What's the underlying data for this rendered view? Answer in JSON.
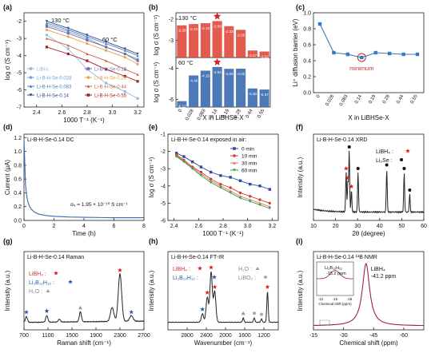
{
  "watermark": "",
  "chart_data": [
    {
      "id": "a",
      "panel_label": "(a)",
      "type": "line",
      "ylabel": "log σ (S cm⁻¹)",
      "xlabel": "1000 T⁻¹ (K⁻¹)",
      "xlim": [
        2.3,
        3.25
      ],
      "ylim": [
        -7,
        -1.5
      ],
      "xticks": [
        "2.4",
        "2.6",
        "2.8",
        "3.0",
        "3.2"
      ],
      "yticks": [
        "-2",
        "-3",
        "-4",
        "-5",
        "-6",
        "-7"
      ],
      "annotations": [
        "130 °C",
        "60 °C"
      ],
      "legend_position": "bottom",
      "series": [
        {
          "name": "LiBH₄",
          "color": "#8fbfe0",
          "x": [
            2.48,
            2.65,
            2.8,
            2.95,
            3.1,
            3.2
          ],
          "y": [
            -2.8,
            -3.6,
            -4.8,
            -5.6,
            -6.1,
            -6.5
          ]
        },
        {
          "name": "Li-B-H-Se-0.028",
          "color": "#6fa0d0",
          "x": [
            2.48,
            2.65,
            2.8,
            2.95,
            3.1,
            3.2
          ],
          "y": [
            -2.2,
            -2.6,
            -3.0,
            -3.5,
            -3.9,
            -4.2
          ]
        },
        {
          "name": "Li-B-H-Se-0.083",
          "color": "#4a7fc0",
          "x": [
            2.48,
            2.65,
            2.8,
            2.95,
            3.1,
            3.2
          ],
          "y": [
            -2.1,
            -2.5,
            -2.9,
            -3.3,
            -3.7,
            -4.0
          ]
        },
        {
          "name": "Li-B-H-Se-0.14",
          "color": "#2c4a8c",
          "x": [
            2.48,
            2.65,
            2.8,
            2.95,
            3.1,
            3.2
          ],
          "y": [
            -2.0,
            -2.4,
            -2.8,
            -3.2,
            -3.6,
            -3.9
          ]
        },
        {
          "name": "Li-B-H-Se-0.19",
          "color": "#7a6aa8",
          "x": [
            2.48,
            2.65,
            2.8,
            2.95,
            3.1,
            3.2
          ],
          "y": [
            -2.3,
            -2.7,
            -3.1,
            -3.5,
            -3.9,
            -4.3
          ]
        },
        {
          "name": "Li-B-H-Se-0.28",
          "color": "#e8a050",
          "x": [
            2.48,
            2.65,
            2.8,
            2.95,
            3.1,
            3.2
          ],
          "y": [
            -2.5,
            -2.9,
            -3.3,
            -3.7,
            -4.1,
            -4.5
          ]
        },
        {
          "name": "Li-B-H-Se-0.44",
          "color": "#d06040",
          "x": [
            2.48,
            2.65,
            2.8,
            2.95,
            3.1,
            3.2
          ],
          "y": [
            -3.0,
            -3.4,
            -3.9,
            -4.3,
            -4.8,
            -5.1
          ]
        },
        {
          "name": "Li-B-H-Se-0.55",
          "color": "#a02020",
          "x": [
            2.48,
            2.65,
            2.8,
            2.95,
            3.1,
            3.2
          ],
          "y": [
            -3.5,
            -3.9,
            -4.3,
            -4.8,
            -5.2,
            -5.5
          ]
        }
      ]
    },
    {
      "id": "b",
      "panel_label": "(b)",
      "type": "bar",
      "ylabel_top": "log σ (S cm⁻¹)",
      "ylabel_bottom": "log σ (S cm⁻¹)",
      "xlabel": "X in LiBHSe-X",
      "categories": [
        "0",
        "0.028",
        "0.083",
        "0.14",
        "0.19",
        "0.28",
        "0.44",
        "0.55"
      ],
      "top": {
        "label": "130 °C",
        "values": [
          -2.29,
          -2.23,
          -2.19,
          -2.09,
          -2.33,
          -2.5,
          -3.47,
          -3.52
        ],
        "labels": [
          "-2.29",
          "-2.23",
          "-2.19",
          "-2.09",
          "-2.33",
          "-2.50",
          "-3.47",
          "-3.52"
        ],
        "yticks": [
          "-2",
          "-3"
        ],
        "color": "#e0483c"
      },
      "bottom": {
        "label": "60 °C",
        "values": [
          -6.12,
          -4.46,
          -4.15,
          -3.91,
          -4.03,
          -4.02,
          -5.3,
          -5.37
        ],
        "labels": [
          "-6.12",
          "-4.46",
          "-4.15",
          "-3.91",
          "-4.03",
          "-4.02",
          "-5.30",
          "-5.37"
        ],
        "yticks": [
          "-4",
          "-6"
        ],
        "color": "#3a6ab0"
      }
    },
    {
      "id": "c",
      "panel_label": "(c)",
      "type": "line",
      "ylabel": "Li⁺ diffusion barrier (eV)",
      "xlabel": "X in LiBHSe-X",
      "categories": [
        "0",
        "0.028",
        "0.083",
        "0.14",
        "0.19",
        "0.28",
        "0.44",
        "0.55"
      ],
      "values": [
        0.86,
        0.5,
        0.48,
        0.44,
        0.5,
        0.49,
        0.48,
        0.48
      ],
      "ylim": [
        0.0,
        1.0
      ],
      "yticks": [
        "0.0",
        "0.2",
        "0.4",
        "0.6",
        "0.8",
        "1.0"
      ],
      "annotation": "minimum"
    },
    {
      "id": "d",
      "panel_label": "(d)",
      "type": "line",
      "title": "Li-B-H-Se-0.14  DC",
      "ylabel": "Current (μA)",
      "xlabel": "Time (h)",
      "xlim": [
        0,
        8
      ],
      "ylim": [
        0,
        1.25
      ],
      "xticks": [
        "0",
        "2",
        "4",
        "6",
        "8"
      ],
      "yticks": [
        "0.0",
        "0.2",
        "0.4",
        "0.6",
        "0.8",
        "1.0",
        "1.2"
      ],
      "annotation": "σₑ = 1.95 × 10⁻¹⁰ S cm⁻¹",
      "x": [
        0.0,
        0.1,
        0.2,
        0.3,
        0.4,
        0.5,
        0.7,
        1.0,
        1.5,
        2.0,
        3.0,
        4.0,
        6.0,
        8.0
      ],
      "y": [
        1.18,
        0.52,
        0.33,
        0.24,
        0.19,
        0.16,
        0.12,
        0.09,
        0.07,
        0.06,
        0.05,
        0.045,
        0.04,
        0.04
      ]
    },
    {
      "id": "e",
      "panel_label": "(e)",
      "type": "line",
      "title": "Li-B-H-Se-0.14 exposed in air:",
      "ylabel": "log σ (S cm⁻¹)",
      "xlabel": "1000 T⁻¹ (K⁻¹)",
      "xlim": [
        2.35,
        3.25
      ],
      "ylim": [
        -6,
        -1
      ],
      "xticks": [
        "2.4",
        "2.6",
        "2.8",
        "3.0",
        "3.2"
      ],
      "yticks": [
        "-1",
        "-2",
        "-3",
        "-4",
        "-5",
        "-6"
      ],
      "x": [
        2.42,
        2.48,
        2.55,
        2.62,
        2.7,
        2.78,
        2.86,
        2.94,
        3.02,
        3.1,
        3.18
      ],
      "series": [
        {
          "name": "0 min",
          "color": "#2c4a9c",
          "y": [
            -2.1,
            -2.3,
            -2.6,
            -2.9,
            -3.2,
            -3.4,
            -3.5,
            -3.7,
            -3.9,
            -4.0,
            -4.2
          ]
        },
        {
          "name": "10 min",
          "color": "#d04030",
          "y": [
            -2.2,
            -2.5,
            -2.9,
            -3.2,
            -3.6,
            -3.9,
            -4.1,
            -4.4,
            -4.6,
            -4.8,
            -5.0
          ]
        },
        {
          "name": "30 min",
          "color": "#e07060",
          "y": [
            -2.25,
            -2.55,
            -2.95,
            -3.3,
            -3.7,
            -4.0,
            -4.3,
            -4.6,
            -4.8,
            -5.0,
            -5.2
          ]
        },
        {
          "name": "60 min",
          "color": "#2ca04a",
          "y": [
            -2.3,
            -2.6,
            -3.0,
            -3.4,
            -3.8,
            -4.1,
            -4.4,
            -4.7,
            -4.9,
            -5.1,
            -5.3
          ]
        }
      ]
    },
    {
      "id": "f",
      "panel_label": "(f)",
      "type": "line",
      "title": "Li-B-H-Se-0.14  XRD",
      "ylabel": "Intensity (a.u.)",
      "xlabel": "2θ (degree)",
      "xlim": [
        10,
        60
      ],
      "xticks": [
        "10",
        "20",
        "30",
        "40",
        "50",
        "60"
      ],
      "legend": [
        "LiBH₄",
        "Li₂Se"
      ],
      "peaks": [
        [
          24.8,
          0.55,
          "LiBH4"
        ],
        [
          25.6,
          0.42,
          "LiBH4"
        ],
        [
          26.2,
          0.85,
          "Li2Se"
        ],
        [
          27.2,
          0.3,
          "LiBH4"
        ],
        [
          30.2,
          0.55,
          "Li2Se"
        ],
        [
          43.2,
          0.6,
          "Li2Se"
        ],
        [
          51.1,
          0.55,
          "Li2Se"
        ],
        [
          53.6,
          0.25,
          "Li2Se"
        ]
      ]
    },
    {
      "id": "g",
      "panel_label": "(g)",
      "type": "line",
      "title": "Li-B-H-Se-0.14 Raman",
      "ylabel": "Intensity (a.u.)",
      "xlabel": "Raman shift (cm⁻¹)",
      "xlim": [
        700,
        2700
      ],
      "xticks": [
        "700",
        "1100",
        "1500",
        "1900",
        "2300",
        "2700"
      ],
      "legend": [
        "LiBH₄",
        "Li₂B₁₂H₁₂",
        "H₂O"
      ],
      "peaks": [
        [
          740,
          0.1,
          "Li2B12H12"
        ],
        [
          1080,
          0.12,
          "Li2B12H12"
        ],
        [
          1290,
          0.05,
          ""
        ],
        [
          1640,
          0.18,
          "H2O"
        ],
        [
          2170,
          0.25,
          ""
        ],
        [
          2300,
          0.85,
          "LiBH4"
        ],
        [
          2490,
          0.1,
          "Li2B12H12"
        ]
      ]
    },
    {
      "id": "h",
      "panel_label": "(h)",
      "type": "line",
      "title": "Li-B-H-Se-0.14  FT-IR",
      "ylabel": "Intensity (a.u.)",
      "xlabel": "Wavenumber (cm⁻¹)",
      "xlim": [
        3200,
        900
      ],
      "xticks": [
        "2800",
        "2400",
        "2000",
        "1600",
        "1200"
      ],
      "legend": [
        "LiBH₄",
        "Li₂B₁₂H₁₂",
        "H₂O",
        "LiBO₂"
      ],
      "peaks": [
        [
          2480,
          0.15,
          "Li2B12H12"
        ],
        [
          2380,
          0.45,
          "LiBH4"
        ],
        [
          2300,
          0.9,
          "LiBH4"
        ],
        [
          2225,
          0.55,
          "LiBH4"
        ],
        [
          1630,
          0.08,
          "H2O"
        ],
        [
          1400,
          0.08,
          "LiBO2"
        ],
        [
          1250,
          0.06,
          "LiBO2"
        ],
        [
          1125,
          0.55,
          "LiBH4"
        ]
      ]
    },
    {
      "id": "i",
      "panel_label": "(i)",
      "type": "line",
      "title": "Li-B-H-Se-0.14  ¹¹B NMR",
      "ylabel": "Intensity (a.u.)",
      "xlabel": "Chemical shift (ppm)",
      "xlim": [
        -15,
        -70
      ],
      "xticks": [
        "-15",
        "-30",
        "-45",
        "-60"
      ],
      "annotation": [
        "LiBH₄",
        "-41.2 ppm"
      ],
      "inset": {
        "label": "Li₂B₁₂H₁₂",
        "sublabel": "-15.2 ppm",
        "xlabel": "Chemical shift (ppm)",
        "xticks": [
          "-12",
          "-15",
          "-18"
        ]
      },
      "peak_center": -41.2
    }
  ]
}
